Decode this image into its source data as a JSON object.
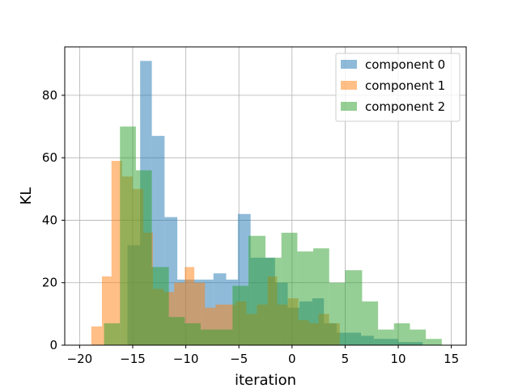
{
  "chart_data": {
    "type": "bar",
    "title": "",
    "xlabel": "iteration",
    "ylabel": "KL",
    "xlim": [
      -21.4,
      16.4
    ],
    "ylim": [
      0,
      95.5
    ],
    "xticks": [
      -20,
      -15,
      -10,
      -5,
      0,
      5,
      10,
      15
    ],
    "xtick_labels": [
      "−20",
      "−15",
      "−10",
      "−5",
      "0",
      "5",
      "10",
      "15"
    ],
    "yticks": [
      0,
      20,
      40,
      60,
      80
    ],
    "ytick_labels": [
      "0",
      "20",
      "40",
      "60",
      "80"
    ],
    "grid": true,
    "legend_position": "top-right",
    "colors": [
      "#1f77b4",
      "#ff7f0e",
      "#2ca02c"
    ],
    "opacity": 0.5,
    "series": [
      {
        "name": "component 0",
        "bins": [
          [
            -15.5,
            -14.3,
            32
          ],
          [
            -14.3,
            -13.2,
            91
          ],
          [
            -13.2,
            -12.0,
            67
          ],
          [
            -12.0,
            -10.8,
            41
          ],
          [
            -10.8,
            -9.7,
            21
          ],
          [
            -9.7,
            -8.5,
            21
          ],
          [
            -8.5,
            -7.4,
            21
          ],
          [
            -7.4,
            -6.2,
            23
          ],
          [
            -6.2,
            -5.1,
            21
          ],
          [
            -5.1,
            -3.9,
            42
          ],
          [
            -3.9,
            -2.7,
            28
          ],
          [
            -2.7,
            -1.6,
            28
          ],
          [
            -1.6,
            -0.4,
            20
          ],
          [
            -0.4,
            0.7,
            12
          ],
          [
            0.7,
            1.9,
            14
          ],
          [
            1.9,
            3.0,
            15
          ],
          [
            3.0,
            4.2,
            7
          ],
          [
            4.2,
            5.3,
            4
          ],
          [
            5.3,
            6.5,
            4
          ],
          [
            6.5,
            7.7,
            3
          ],
          [
            7.7,
            8.8,
            2
          ],
          [
            8.8,
            10.0,
            2
          ],
          [
            10.0,
            11.1,
            1
          ],
          [
            11.1,
            12.3,
            1
          ]
        ]
      },
      {
        "name": "component 1",
        "bins": [
          [
            -18.9,
            -17.9,
            6
          ],
          [
            -17.9,
            -17.0,
            22
          ],
          [
            -17.0,
            -16.0,
            59
          ],
          [
            -16.0,
            -15.0,
            54
          ],
          [
            -15.0,
            -14.0,
            50
          ],
          [
            -14.0,
            -13.1,
            36
          ],
          [
            -13.1,
            -12.1,
            18
          ],
          [
            -12.1,
            -11.1,
            17
          ],
          [
            -11.1,
            -10.1,
            20
          ],
          [
            -10.1,
            -9.2,
            25
          ],
          [
            -9.2,
            -8.2,
            20
          ],
          [
            -8.2,
            -7.2,
            12
          ],
          [
            -7.2,
            -6.2,
            13
          ],
          [
            -6.2,
            -5.3,
            13
          ],
          [
            -5.3,
            -4.3,
            14
          ],
          [
            -4.3,
            -3.3,
            10
          ],
          [
            -3.3,
            -2.3,
            13
          ],
          [
            -2.3,
            -1.4,
            22
          ],
          [
            -1.4,
            -0.4,
            13
          ],
          [
            -0.4,
            0.6,
            15
          ],
          [
            0.6,
            1.6,
            8
          ],
          [
            1.6,
            2.5,
            7
          ],
          [
            2.5,
            3.5,
            10
          ],
          [
            3.5,
            4.5,
            7
          ]
        ]
      },
      {
        "name": "component 2",
        "bins": [
          [
            -17.7,
            -16.2,
            7
          ],
          [
            -16.2,
            -14.7,
            70
          ],
          [
            -14.7,
            -13.2,
            56
          ],
          [
            -13.2,
            -11.6,
            25
          ],
          [
            -11.6,
            -10.1,
            9
          ],
          [
            -10.1,
            -8.6,
            7
          ],
          [
            -8.6,
            -7.1,
            5
          ],
          [
            -7.1,
            -5.6,
            5
          ],
          [
            -5.6,
            -4.1,
            19
          ],
          [
            -4.1,
            -2.5,
            35
          ],
          [
            -2.5,
            -1.0,
            28
          ],
          [
            -1.0,
            0.5,
            36
          ],
          [
            0.5,
            2.0,
            30
          ],
          [
            2.0,
            3.5,
            31
          ],
          [
            3.5,
            5.0,
            20
          ],
          [
            5.0,
            6.6,
            24
          ],
          [
            6.6,
            8.1,
            14
          ],
          [
            8.1,
            9.6,
            5
          ],
          [
            9.6,
            11.1,
            7
          ],
          [
            11.1,
            12.6,
            5
          ],
          [
            12.6,
            14.1,
            2
          ]
        ]
      }
    ]
  }
}
